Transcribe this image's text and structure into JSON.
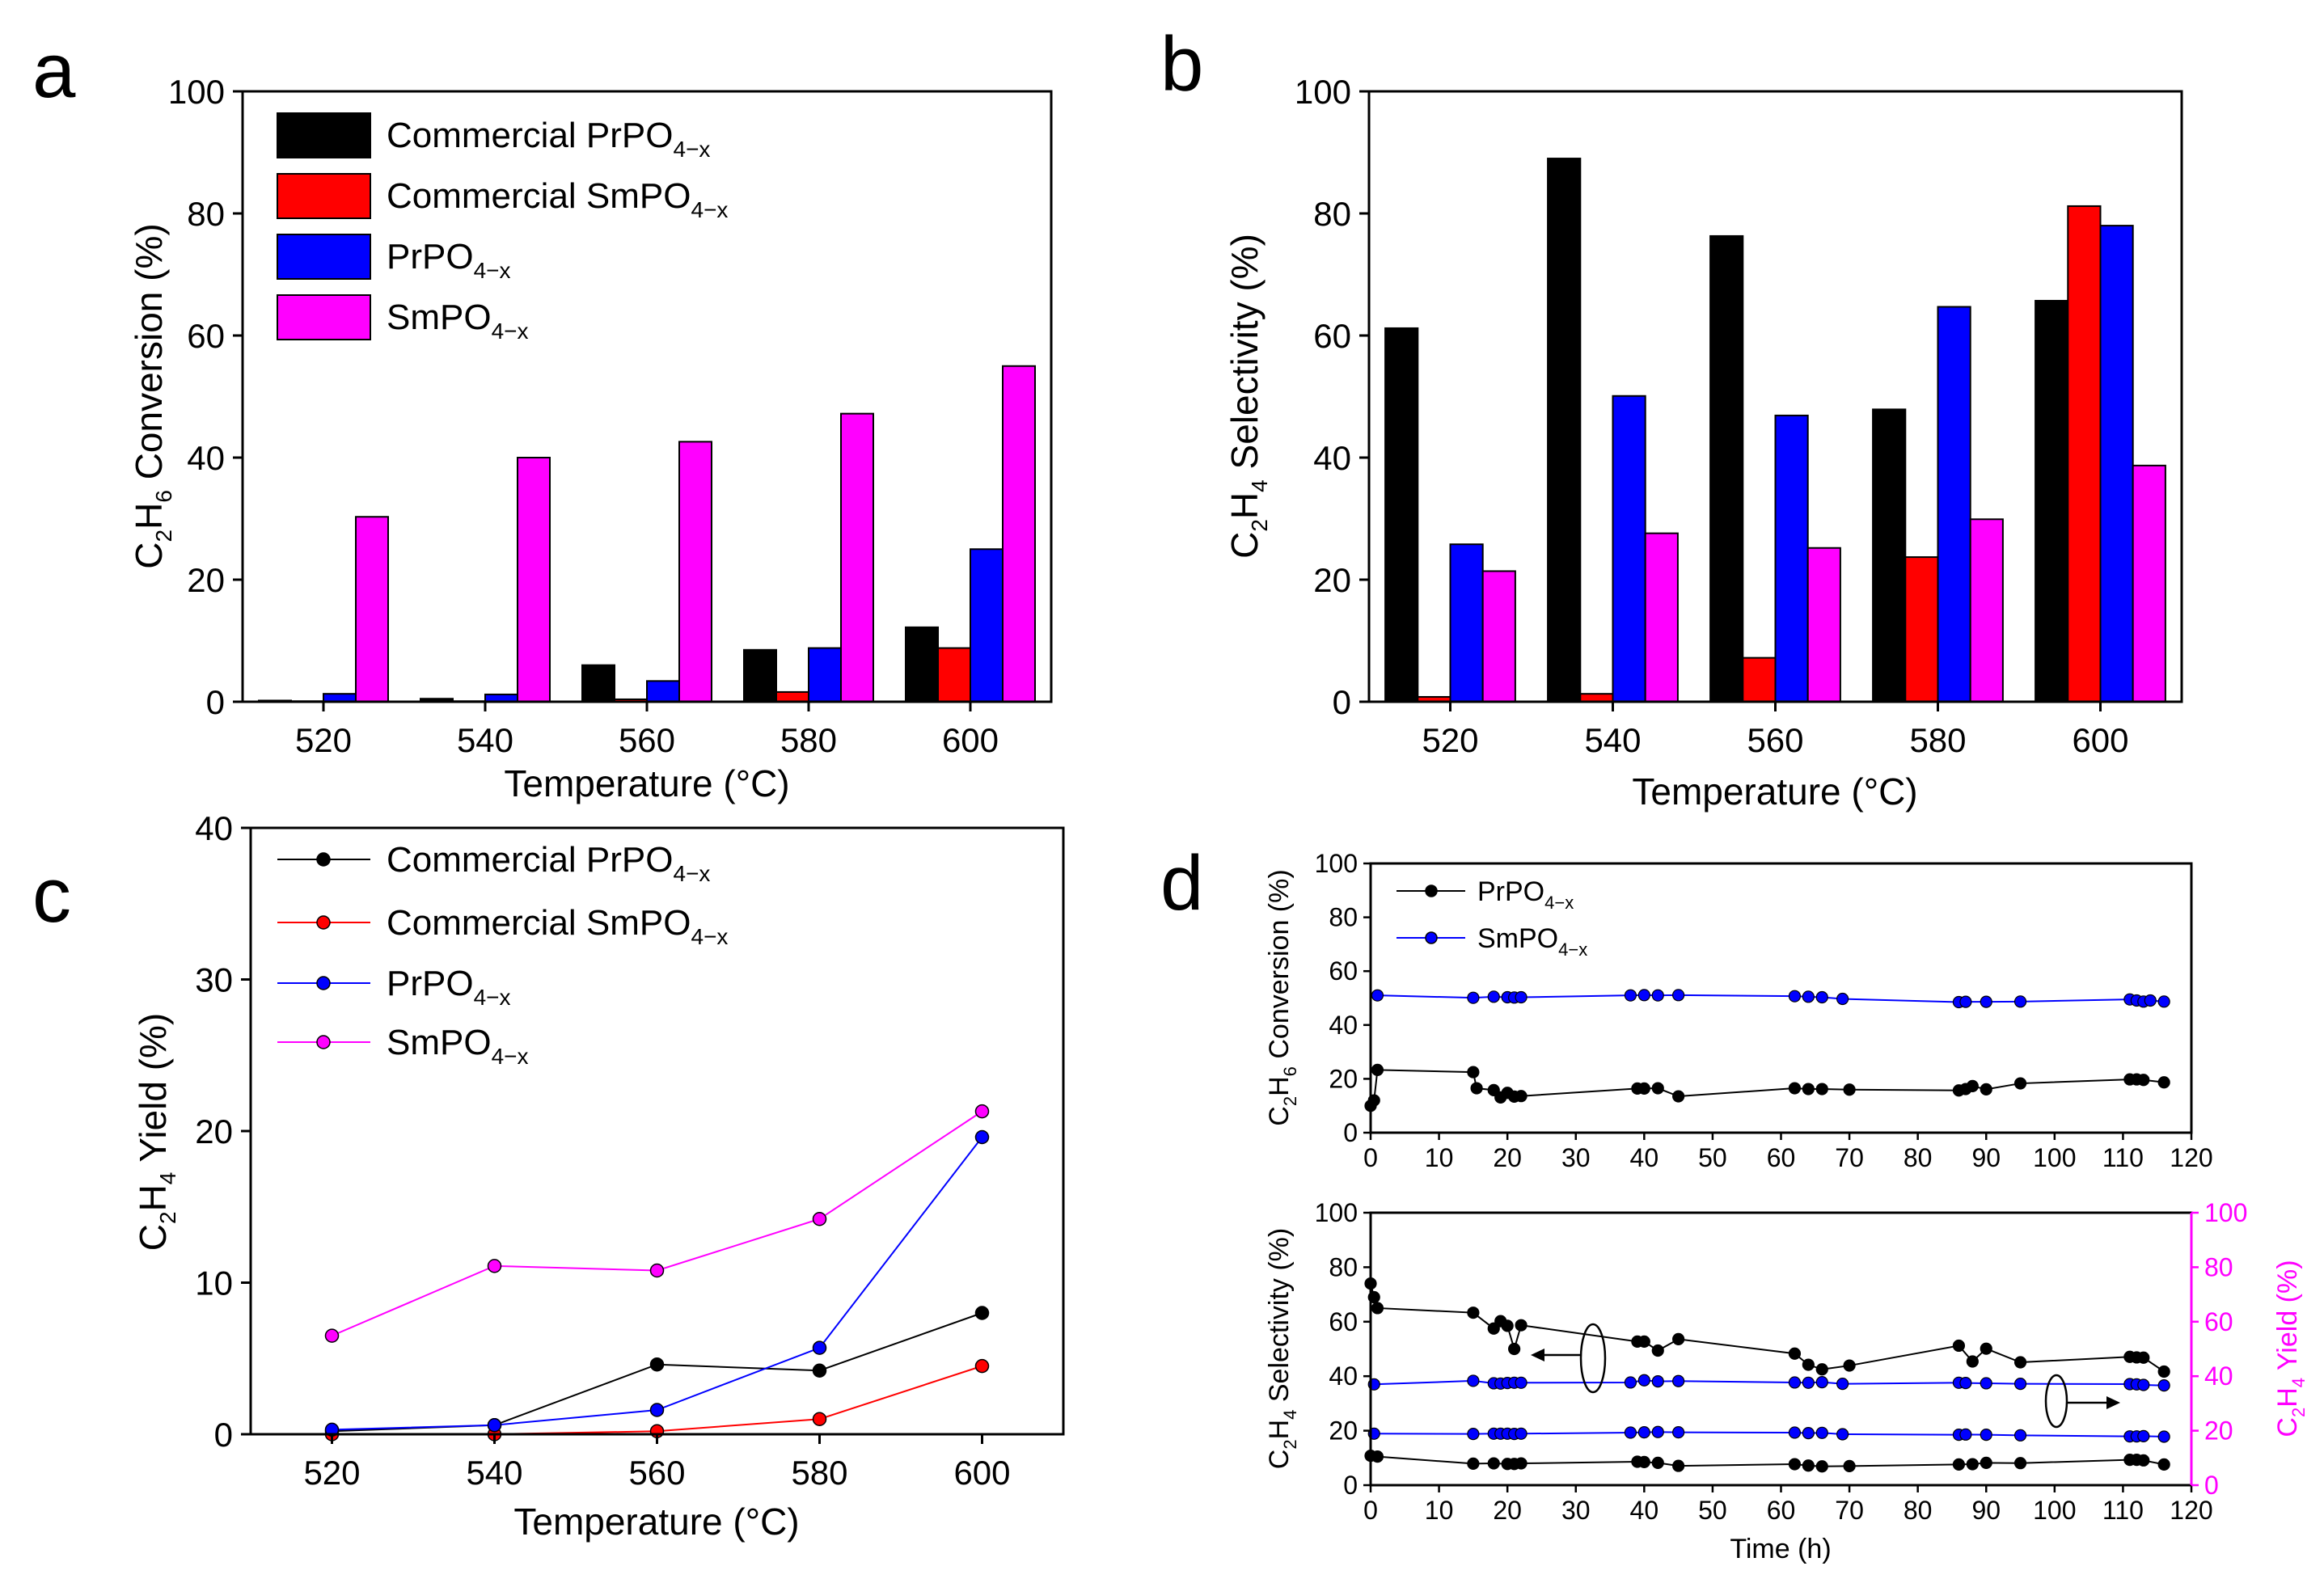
{
  "chart_data": [
    {
      "panel": "a",
      "type": "bar",
      "xlabel": "Temperature (°C)",
      "ylabel": {
        "pre": "C",
        "s1": "2",
        "mid": "H",
        "s2": "6",
        "post": " Conversion (%)"
      },
      "categories": [
        "520",
        "540",
        "560",
        "580",
        "600"
      ],
      "ylim": [
        0,
        100
      ],
      "yticks": [
        "0",
        "20",
        "40",
        "60",
        "80",
        "100"
      ],
      "legend_position": "top-left",
      "series": [
        {
          "name": "Commercial PrPO",
          "sub": "4−x",
          "color": "#000000",
          "values": [
            0.2,
            0.5,
            6.0,
            8.5,
            12.2
          ]
        },
        {
          "name": "Commercial SmPO",
          "sub": "4−x",
          "color": "#ff0000",
          "values": [
            0.1,
            0.1,
            0.4,
            1.6,
            8.8
          ]
        },
        {
          "name": "PrPO",
          "sub": "4−x",
          "color": "#0000ff",
          "values": [
            1.3,
            1.2,
            3.4,
            8.8,
            25.0
          ]
        },
        {
          "name": "SmPO",
          "sub": "4−x",
          "color": "#ff00ff",
          "values": [
            30.3,
            40.0,
            42.6,
            47.2,
            55.0
          ]
        }
      ]
    },
    {
      "panel": "b",
      "type": "bar",
      "xlabel": "Temperature (°C)",
      "ylabel": {
        "pre": "C",
        "s1": "2",
        "mid": "H",
        "s2": "4",
        "post": " Selectivity (%)"
      },
      "categories": [
        "520",
        "540",
        "560",
        "580",
        "600"
      ],
      "ylim": [
        0,
        100
      ],
      "yticks": [
        "0",
        "20",
        "40",
        "60",
        "80",
        "100"
      ],
      "series": [
        {
          "name": "Commercial PrPO4−x",
          "color": "#000000",
          "values": [
            61.2,
            89.0,
            76.3,
            47.9,
            65.7
          ]
        },
        {
          "name": "Commercial SmPO4−x",
          "color": "#ff0000",
          "values": [
            0.8,
            1.3,
            7.2,
            23.7,
            81.2
          ]
        },
        {
          "name": "PrPO4−x",
          "color": "#0000ff",
          "values": [
            25.8,
            50.1,
            46.9,
            64.7,
            78.0
          ]
        },
        {
          "name": "SmPO4−x",
          "color": "#ff00ff",
          "values": [
            21.4,
            27.6,
            25.2,
            29.9,
            38.7
          ]
        }
      ]
    },
    {
      "panel": "c",
      "type": "line",
      "xlabel": "Temperature (°C)",
      "ylabel": {
        "pre": "C",
        "s1": "2",
        "mid": "H",
        "s2": "4",
        "post": " Yield (%)"
      },
      "x": [
        520,
        540,
        560,
        580,
        600
      ],
      "xticks": [
        "520",
        "540",
        "560",
        "580",
        "600"
      ],
      "xlim": [
        510,
        610
      ],
      "ylim": [
        0,
        40
      ],
      "yticks": [
        "0",
        "10",
        "20",
        "30",
        "40"
      ],
      "legend_position": "top-left",
      "series": [
        {
          "name": "Commercial PrPO",
          "sub": "4−x",
          "color": "#000000",
          "values": [
            0.2,
            0.6,
            4.6,
            4.2,
            8.0
          ]
        },
        {
          "name": "Commercial SmPO",
          "sub": "4−x",
          "color": "#ff0000",
          "values": [
            0.0,
            0.0,
            0.2,
            1.0,
            4.5
          ]
        },
        {
          "name": "PrPO",
          "sub": "4−x",
          "color": "#0000ff",
          "values": [
            0.3,
            0.6,
            1.6,
            5.7,
            19.6
          ]
        },
        {
          "name": "SmPO",
          "sub": "4−x",
          "color": "#ff00ff",
          "values": [
            6.5,
            11.1,
            10.8,
            14.2,
            21.3
          ]
        }
      ]
    },
    {
      "panel": "d",
      "type": "line",
      "xlabel": "Time (h)",
      "xlim": [
        0,
        120
      ],
      "xticks": [
        "0",
        "10",
        "20",
        "30",
        "40",
        "50",
        "60",
        "70",
        "80",
        "90",
        "100",
        "110",
        "120"
      ],
      "top": {
        "ylabel": {
          "pre": "C",
          "s1": "2",
          "mid": "H",
          "s2": "6",
          "post": " Conversion (%)"
        },
        "ylim": [
          0,
          100
        ],
        "yticks": [
          "0",
          "20",
          "40",
          "60",
          "80",
          "100"
        ],
        "legend_position": "top-left",
        "series": [
          {
            "name": "PrPO",
            "sub": "4−x",
            "color": "#000000",
            "x": [
              0,
              0.5,
              1,
              15,
              15.5,
              18,
              19,
              20,
              21,
              22,
              39,
              40,
              42,
              45,
              62,
              64,
              66,
              70,
              86,
              87,
              88,
              90,
              95,
              111,
              112,
              113,
              116
            ],
            "y": [
              10,
              12,
              23.3,
              22.5,
              16.5,
              15.8,
              13.1,
              14.8,
              13.4,
              13.6,
              16.4,
              16.4,
              16.5,
              13.5,
              16.5,
              16.2,
              16.2,
              16.0,
              15.7,
              16.2,
              17.3,
              16.1,
              18.3,
              19.8,
              19.8,
              19.6,
              18.7
            ]
          },
          {
            "name": "SmPO",
            "sub": "4−x",
            "color": "#0000ff",
            "x": [
              1,
              15,
              18,
              20,
              21,
              22,
              38,
              40,
              42,
              45,
              62,
              64,
              66,
              69,
              86,
              87,
              90,
              95,
              111,
              112,
              113,
              114,
              116
            ],
            "y": [
              51,
              50.1,
              50.5,
              50.3,
              50.2,
              50.3,
              51.0,
              51.1,
              51.0,
              51.1,
              50.7,
              50.5,
              50.3,
              49.7,
              48.5,
              48.6,
              48.6,
              48.7,
              49.5,
              49.1,
              48.7,
              49.1,
              48.7
            ]
          }
        ]
      },
      "bottom": {
        "ylabel": {
          "pre": "C",
          "s1": "2",
          "mid": "H",
          "s2": "4",
          "post": " Selectivity (%)"
        },
        "ylabel_right": {
          "pre": "C",
          "s1": "2",
          "mid": "H",
          "s2": "4",
          "post": " Yield (%)"
        },
        "ylim": [
          0,
          100
        ],
        "yticks": [
          "0",
          "20",
          "40",
          "60",
          "80",
          "100"
        ],
        "right_axis_color": "#ff00ff",
        "selectivity": [
          {
            "name": "PrPO4−x",
            "color": "#000000",
            "x": [
              0,
              0.5,
              1,
              15,
              18,
              19,
              20,
              21,
              22,
              39,
              40,
              42,
              45,
              62,
              64,
              66,
              70,
              86,
              88,
              90,
              95,
              111,
              112,
              113,
              116
            ],
            "y": [
              74,
              69,
              65,
              63.3,
              57.5,
              60.2,
              58.5,
              50,
              58.7,
              52.7,
              52.7,
              49.4,
              53.6,
              48.3,
              44.2,
              42.5,
              43.9,
              51.2,
              45.4,
              50.1,
              45.1,
              47.1,
              46.9,
              46.8,
              41.7
            ]
          },
          {
            "name": "SmPO4−x",
            "color": "#0000ff",
            "x": [
              0.5,
              15,
              18,
              19,
              20,
              21,
              22,
              38,
              40,
              42,
              45,
              62,
              64,
              66,
              69,
              86,
              87,
              90,
              95,
              111,
              112,
              113,
              116
            ],
            "y": [
              37,
              38.3,
              37.4,
              37.3,
              37.5,
              37.6,
              37.6,
              37.7,
              38.5,
              38.1,
              38.2,
              37.7,
              37.6,
              37.8,
              37.2,
              37.6,
              37.5,
              37.4,
              37.2,
              37.1,
              37.0,
              36.8,
              36.6
            ]
          }
        ],
        "yield": [
          {
            "name": "PrPO4−x",
            "color": "#000000",
            "x": [
              0,
              1,
              15,
              18,
              20,
              21,
              22,
              39,
              40,
              42,
              45,
              62,
              64,
              66,
              70,
              86,
              88,
              90,
              95,
              111,
              112,
              113,
              116
            ],
            "y": [
              10.8,
              10.5,
              7.9,
              8.0,
              7.8,
              7.8,
              8.0,
              8.6,
              8.5,
              8.2,
              7.1,
              7.7,
              7.2,
              6.9,
              7.0,
              7.6,
              7.7,
              8.2,
              8.1,
              9.3,
              9.3,
              9.1,
              7.6
            ]
          },
          {
            "name": "SmPO4−x",
            "color": "#0000ff",
            "x": [
              0.5,
              15,
              18,
              19,
              20,
              21,
              22,
              38,
              40,
              42,
              45,
              62,
              64,
              66,
              69,
              86,
              87,
              90,
              95,
              111,
              112,
              113,
              116
            ],
            "y": [
              18.9,
              18.8,
              18.9,
              18.9,
              18.9,
              18.8,
              18.9,
              19.3,
              19.4,
              19.5,
              19.4,
              19.3,
              19.1,
              19.2,
              18.7,
              18.5,
              18.6,
              18.5,
              18.3,
              17.9,
              17.9,
              18.0,
              17.8
            ]
          }
        ]
      }
    }
  ]
}
